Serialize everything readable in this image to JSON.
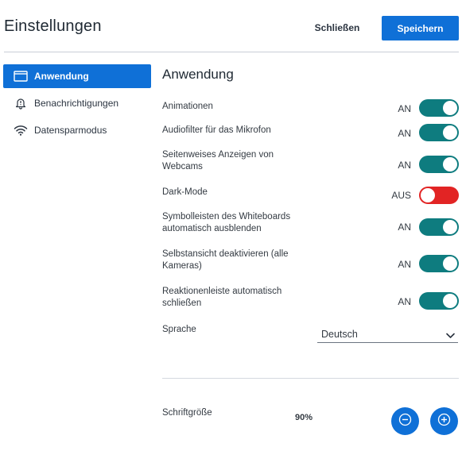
{
  "header": {
    "title": "Einstellungen",
    "close_label": "Schließen",
    "save_label": "Speichern"
  },
  "sidebar": {
    "items": [
      {
        "label": "Anwendung",
        "icon": "window-icon",
        "active": true
      },
      {
        "label": "Benachrichtigungen",
        "icon": "bell-icon",
        "active": false
      },
      {
        "label": "Datensparmodus",
        "icon": "wifi-icon",
        "active": false
      }
    ]
  },
  "main": {
    "section_title": "Anwendung",
    "settings": [
      {
        "label": "Animationen",
        "state": "AN",
        "on": true
      },
      {
        "label": "Audiofilter für das Mikrofon",
        "state": "AN",
        "on": true
      },
      {
        "label": "Seitenweises Anzeigen von Webcams",
        "state": "AN",
        "on": true
      },
      {
        "label": "Dark-Mode",
        "state": "AUS",
        "on": false
      },
      {
        "label": "Symbolleisten des Whiteboards automatisch ausblenden",
        "state": "AN",
        "on": true
      },
      {
        "label": "Selbstansicht deaktivieren (alle Kameras)",
        "state": "AN",
        "on": true
      },
      {
        "label": "Reaktionenleiste automatisch schließen",
        "state": "AN",
        "on": true
      }
    ],
    "language": {
      "label": "Sprache",
      "value": "Deutsch"
    },
    "font_size": {
      "label": "Schriftgröße",
      "value": "90%"
    }
  },
  "colors": {
    "accent": "#0f70d7",
    "toggle_on": "#0e7c7f",
    "toggle_off": "#e22424"
  }
}
